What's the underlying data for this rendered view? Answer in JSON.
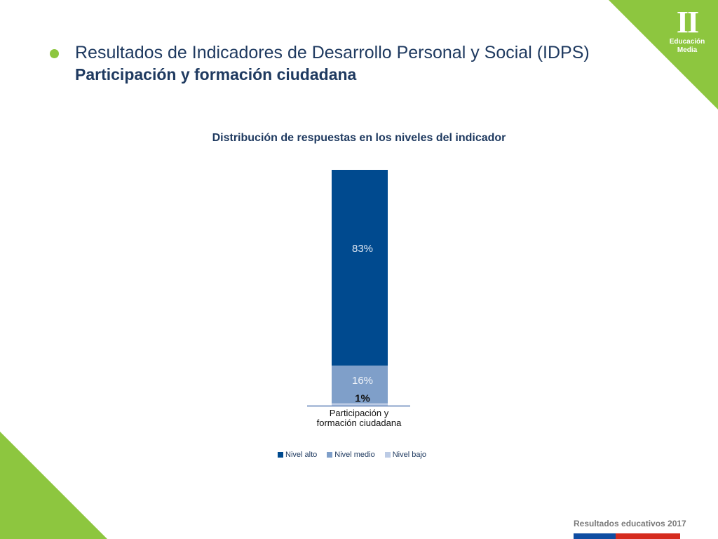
{
  "header": {
    "title": "Resultados de Indicadores de Desarrollo Personal y Social (IDPS)",
    "subtitle": "Participación y formación ciudadana"
  },
  "badge": {
    "roman": "II",
    "line1": "Educación",
    "line2": "Media"
  },
  "footer": {
    "text": "Resultados educativos 2017"
  },
  "colors": {
    "accent_green": "#8dc63f",
    "title_text": "#1f3a60",
    "nivel_alto": "#004a8f",
    "nivel_medio": "#7f9fc9",
    "nivel_bajo": "#bccbe5",
    "flag_blue": "#0f4da2",
    "flag_red": "#d52b1e"
  },
  "chart_data": {
    "type": "bar",
    "stacked": true,
    "title": "Distribución de respuestas en los niveles del indicador",
    "categories": [
      "Participación y formación ciudadana"
    ],
    "category_label_lines": [
      "Participación y",
      "formación ciudadana"
    ],
    "series": [
      {
        "name": "Nivel alto",
        "values": [
          83
        ],
        "label": "83%",
        "color": "#004a8f"
      },
      {
        "name": "Nivel medio",
        "values": [
          16
        ],
        "label": "16%",
        "color": "#7f9fc9"
      },
      {
        "name": "Nivel bajo",
        "values": [
          1
        ],
        "label": "1%",
        "color": "#bccbe5"
      }
    ],
    "ylim": [
      0,
      100
    ],
    "legend_position": "bottom",
    "grid": false
  }
}
